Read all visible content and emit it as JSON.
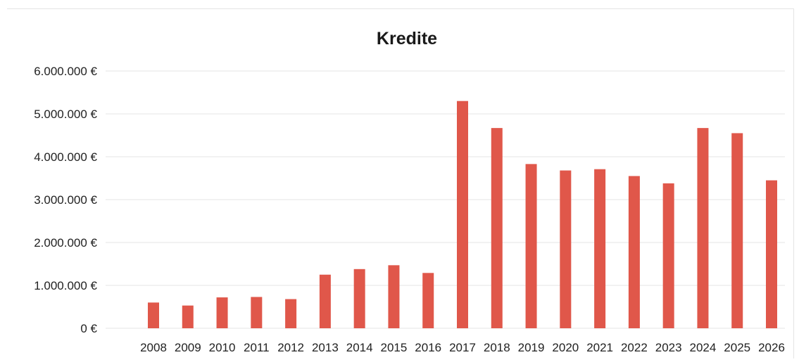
{
  "chart_data": {
    "type": "bar",
    "title": "Kredite",
    "xlabel": "",
    "ylabel": "",
    "ylim": [
      0,
      6000000
    ],
    "yticks": [
      {
        "value": 0,
        "label": "0 €"
      },
      {
        "value": 1000000,
        "label": "1.000.000 €"
      },
      {
        "value": 2000000,
        "label": "2.000.000 €"
      },
      {
        "value": 3000000,
        "label": "3.000.000 €"
      },
      {
        "value": 4000000,
        "label": "4.000.000 €"
      },
      {
        "value": 5000000,
        "label": "5.000.000 €"
      },
      {
        "value": 6000000,
        "label": "6.000.000 €"
      }
    ],
    "grid": true,
    "legend": "none",
    "bar_color": "#e0574a",
    "categories": [
      "2008",
      "2009",
      "2010",
      "2011",
      "2012",
      "2013",
      "2014",
      "2015",
      "2016",
      "2017",
      "2018",
      "2019",
      "2020",
      "2021",
      "2022",
      "2023",
      "2024",
      "2025",
      "2026"
    ],
    "values": [
      600000,
      530000,
      720000,
      730000,
      680000,
      1250000,
      1380000,
      1470000,
      1290000,
      5300000,
      4670000,
      3830000,
      3680000,
      3710000,
      3550000,
      3380000,
      4670000,
      4550000,
      3450000
    ]
  }
}
